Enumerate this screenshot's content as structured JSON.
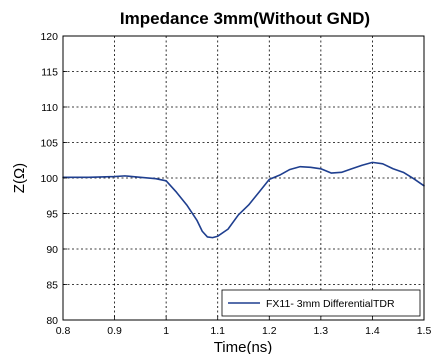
{
  "chart_data": {
    "type": "line",
    "title": "Impedance 3mm(Without GND)",
    "xlabel": "Time(ns)",
    "ylabel": "Z(Ω)",
    "xlim": [
      0.8,
      1.5
    ],
    "ylim": [
      80,
      120
    ],
    "xticks": [
      "0.8",
      "0.9",
      "1",
      "1.1",
      "1.2",
      "1.3",
      "1.4",
      "1.5"
    ],
    "yticks": [
      "80",
      "85",
      "90",
      "95",
      "100",
      "105",
      "110",
      "115",
      "120"
    ],
    "grid": true,
    "legend_position": "bottom-right",
    "series": [
      {
        "name": "FX11- 3mm DifferentialTDR",
        "color": "#1f3f8f",
        "x": [
          0.8,
          0.85,
          0.9,
          0.92,
          0.95,
          0.98,
          1.0,
          1.02,
          1.04,
          1.06,
          1.07,
          1.08,
          1.09,
          1.1,
          1.12,
          1.14,
          1.16,
          1.18,
          1.2,
          1.22,
          1.24,
          1.26,
          1.28,
          1.3,
          1.32,
          1.34,
          1.36,
          1.38,
          1.4,
          1.42,
          1.44,
          1.46,
          1.48,
          1.5
        ],
        "y": [
          100.1,
          100.1,
          100.2,
          100.3,
          100.1,
          99.9,
          99.6,
          98.0,
          96.2,
          94.0,
          92.5,
          91.7,
          91.6,
          91.8,
          92.8,
          94.8,
          96.2,
          98.0,
          99.8,
          100.4,
          101.2,
          101.6,
          101.5,
          101.3,
          100.7,
          100.8,
          101.3,
          101.8,
          102.2,
          102.0,
          101.3,
          100.8,
          99.9,
          98.9
        ]
      }
    ]
  }
}
